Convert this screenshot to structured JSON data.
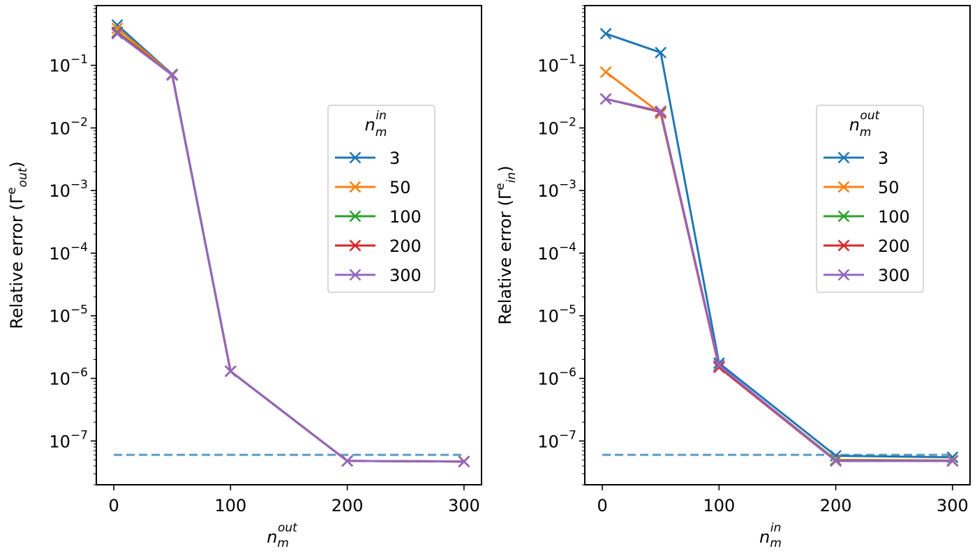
{
  "chart_data": [
    {
      "type": "line",
      "yscale": "log",
      "x_ticks": [
        "0",
        "100",
        "200",
        "300"
      ],
      "y_ticks": [
        {
          "base": "10",
          "exp": "−1"
        },
        {
          "base": "10",
          "exp": "−2"
        },
        {
          "base": "10",
          "exp": "−3"
        },
        {
          "base": "10",
          "exp": "−4"
        },
        {
          "base": "10",
          "exp": "−5"
        },
        {
          "base": "10",
          "exp": "−6"
        },
        {
          "base": "10",
          "exp": "−7"
        }
      ],
      "y_tick_values": [
        0.1,
        0.01,
        0.001,
        0.0001,
        1e-05,
        1e-06,
        1e-07
      ],
      "xlim": [
        -15,
        315
      ],
      "ylim": [
        2e-08,
        0.9
      ],
      "xlabel": {
        "base": "n",
        "sub": "m",
        "sup": "out"
      },
      "ylabel": {
        "prefix": "Relative error (Γ",
        "sup": "e",
        "sub": "out",
        "suffix": ")"
      },
      "legend": {
        "title": {
          "base": "n",
          "sub": "m",
          "sup": "in"
        },
        "entries": [
          "3",
          "50",
          "100",
          "200",
          "300"
        ],
        "placement": "center-right"
      },
      "reference_line": {
        "value": 6e-08,
        "style": "dashed",
        "color": "#5a9bc3"
      },
      "series": [
        {
          "name": "3",
          "color": "#1f77b4",
          "x": [
            3,
            50,
            100,
            200,
            300
          ],
          "y": [
            0.44,
            0.072,
            1.3e-06,
            4.8e-08,
            4.7e-08
          ]
        },
        {
          "name": "50",
          "color": "#ff7f0e",
          "x": [
            3,
            50,
            100,
            200,
            300
          ],
          "y": [
            0.39,
            0.071,
            1.3e-06,
            4.8e-08,
            4.7e-08
          ]
        },
        {
          "name": "100",
          "color": "#2ca02c",
          "x": [
            3,
            50,
            100,
            200,
            300
          ],
          "y": [
            0.34,
            0.07,
            1.3e-06,
            4.8e-08,
            4.7e-08
          ]
        },
        {
          "name": "200",
          "color": "#d62728",
          "x": [
            3,
            50,
            100,
            200,
            300
          ],
          "y": [
            0.33,
            0.07,
            1.3e-06,
            4.8e-08,
            4.7e-08
          ]
        },
        {
          "name": "300",
          "color": "#9467bd",
          "x": [
            3,
            50,
            100,
            200,
            300
          ],
          "y": [
            0.32,
            0.07,
            1.3e-06,
            4.8e-08,
            4.7e-08
          ]
        }
      ]
    },
    {
      "type": "line",
      "yscale": "log",
      "x_ticks": [
        "0",
        "100",
        "200",
        "300"
      ],
      "y_ticks": [
        {
          "base": "10",
          "exp": "−1"
        },
        {
          "base": "10",
          "exp": "−2"
        },
        {
          "base": "10",
          "exp": "−3"
        },
        {
          "base": "10",
          "exp": "−4"
        },
        {
          "base": "10",
          "exp": "−5"
        },
        {
          "base": "10",
          "exp": "−6"
        },
        {
          "base": "10",
          "exp": "−7"
        }
      ],
      "y_tick_values": [
        0.1,
        0.01,
        0.001,
        0.0001,
        1e-05,
        1e-06,
        1e-07
      ],
      "xlim": [
        -15,
        315
      ],
      "ylim": [
        2e-08,
        0.9
      ],
      "xlabel": {
        "base": "n",
        "sub": "m",
        "sup": "in"
      },
      "ylabel": {
        "prefix": "Relative error (Γ",
        "sup": "e",
        "sub": "in",
        "suffix": ")"
      },
      "legend": {
        "title": {
          "base": "n",
          "sub": "m",
          "sup": "out"
        },
        "entries": [
          "3",
          "50",
          "100",
          "200",
          "300"
        ],
        "placement": "center-right"
      },
      "reference_line": {
        "value": 6e-08,
        "style": "dashed",
        "color": "#5a9bc3"
      },
      "series": [
        {
          "name": "3",
          "color": "#1f77b4",
          "x": [
            3,
            50,
            100,
            200,
            300
          ],
          "y": [
            0.32,
            0.16,
            1.75e-06,
            5.8e-08,
            5.5e-08
          ]
        },
        {
          "name": "50",
          "color": "#ff7f0e",
          "x": [
            3,
            50,
            100,
            200,
            300
          ],
          "y": [
            0.078,
            0.017,
            1.55e-06,
            5e-08,
            4.9e-08
          ]
        },
        {
          "name": "100",
          "color": "#2ca02c",
          "x": [
            3,
            50,
            100,
            200,
            300
          ],
          "y": [
            0.029,
            0.018,
            1.55e-06,
            4.9e-08,
            4.8e-08
          ]
        },
        {
          "name": "200",
          "color": "#d62728",
          "x": [
            3,
            50,
            100,
            200,
            300
          ],
          "y": [
            0.029,
            0.018,
            1.5e-06,
            4.8e-08,
            4.8e-08
          ]
        },
        {
          "name": "300",
          "color": "#9467bd",
          "x": [
            3,
            50,
            100,
            200,
            300
          ],
          "y": [
            0.029,
            0.0185,
            1.6e-06,
            4.8e-08,
            4.8e-08
          ]
        }
      ]
    }
  ]
}
